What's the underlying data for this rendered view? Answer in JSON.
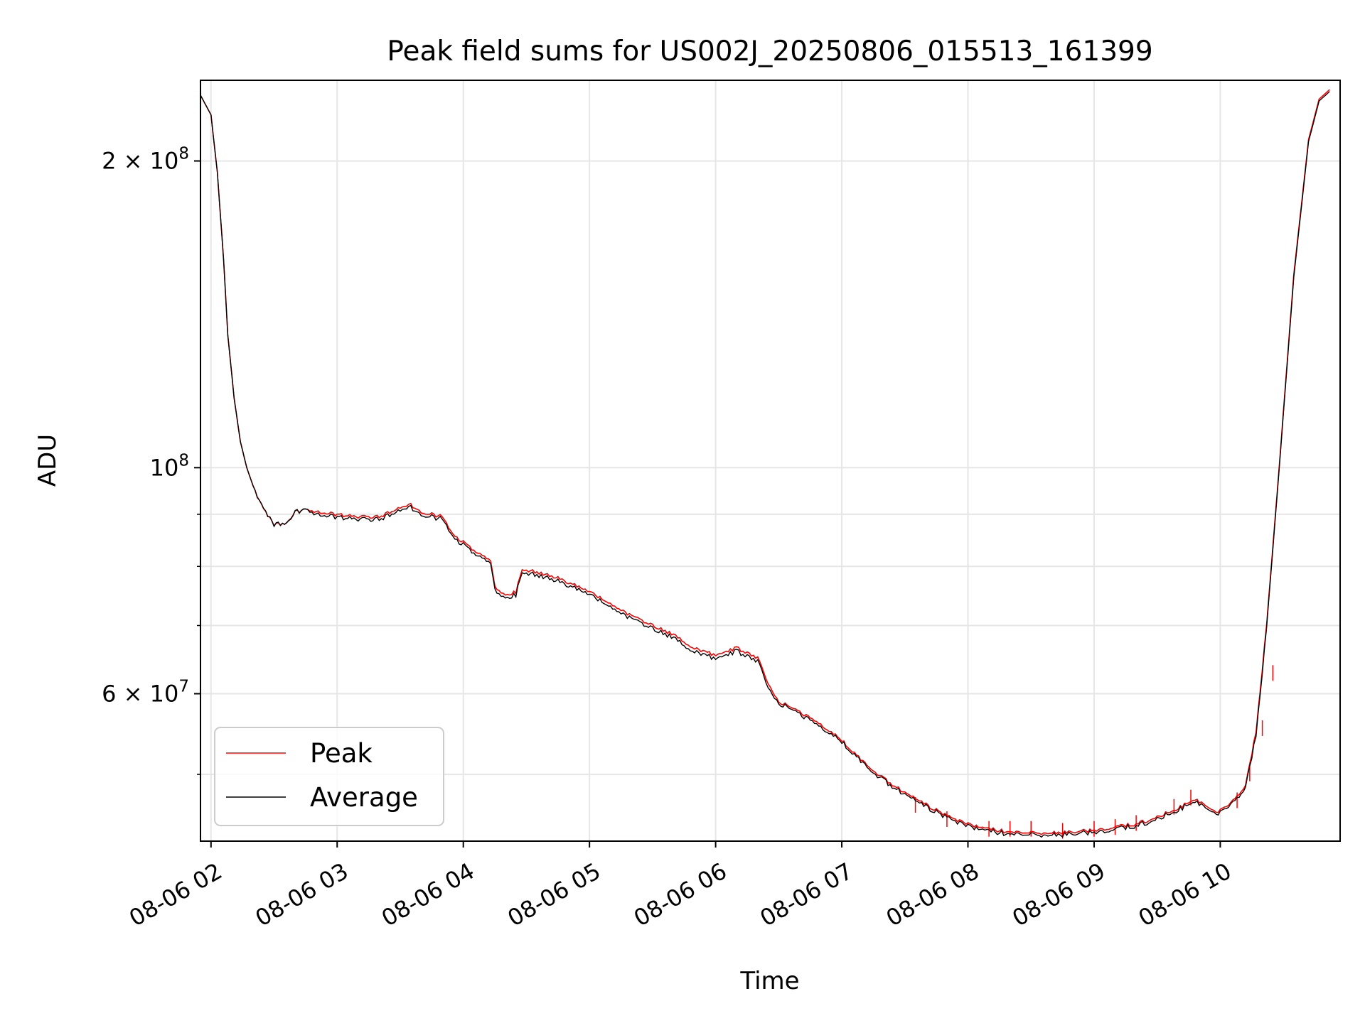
{
  "chart_data": {
    "type": "line",
    "title": "Peak field sums for US002J_20250806_015513_161399",
    "xlabel": "Time",
    "ylabel": "ADU",
    "y_scale": "log",
    "x_unit": "hours of 2025-08-06",
    "xlim": [
      "08-06 01:55",
      "08-06 10:57"
    ],
    "ylim": [
      43000000,
      240000000
    ],
    "x_ticks": [
      "08-06 02",
      "08-06 03",
      "08-06 04",
      "08-06 05",
      "08-06 06",
      "08-06 07",
      "08-06 08",
      "08-06 09",
      "08-06 10"
    ],
    "y_ticks_major": [
      {
        "value": 200000000,
        "mantissa": "2",
        "exponent": "8"
      },
      {
        "value": 100000000,
        "mantissa": "",
        "exponent": "8"
      },
      {
        "value": 60000000,
        "mantissa": "6",
        "exponent": "7"
      }
    ],
    "y_ticks_minor": [
      90000000,
      80000000,
      70000000,
      50000000
    ],
    "grid": true,
    "legend_position": "lower-left",
    "series": [
      {
        "name": "Peak",
        "color": "#ff0000",
        "points": [
          [
            "08-06 01:55",
            232000000
          ],
          [
            "08-06 02:00",
            222000000
          ],
          [
            "08-06 02:03",
            195000000
          ],
          [
            "08-06 02:06",
            160000000
          ],
          [
            "08-06 02:08",
            135000000
          ],
          [
            "08-06 02:11",
            117000000
          ],
          [
            "08-06 02:14",
            106000000
          ],
          [
            "08-06 02:17",
            100000000
          ],
          [
            "08-06 02:20",
            96000000
          ],
          [
            "08-06 02:25",
            91000000
          ],
          [
            "08-06 02:30",
            88000000
          ],
          [
            "08-06 02:35",
            88000000
          ],
          [
            "08-06 02:40",
            90500000
          ],
          [
            "08-06 02:45",
            91000000
          ],
          [
            "08-06 02:50",
            90500000
          ],
          [
            "08-06 03:00",
            90000000
          ],
          [
            "08-06 03:10",
            89500000
          ],
          [
            "08-06 03:20",
            89500000
          ],
          [
            "08-06 03:30",
            91500000
          ],
          [
            "08-06 03:35",
            92000000
          ],
          [
            "08-06 03:40",
            90500000
          ],
          [
            "08-06 03:50",
            89500000
          ],
          [
            "08-06 03:55",
            86000000
          ],
          [
            "08-06 04:05",
            83000000
          ],
          [
            "08-06 04:13",
            81000000
          ],
          [
            "08-06 04:15",
            76500000
          ],
          [
            "08-06 04:20",
            75000000
          ],
          [
            "08-06 04:25",
            75500000
          ],
          [
            "08-06 04:28",
            79500000
          ],
          [
            "08-06 04:35",
            79000000
          ],
          [
            "08-06 04:45",
            78000000
          ],
          [
            "08-06 05:00",
            75500000
          ],
          [
            "08-06 05:10",
            73500000
          ],
          [
            "08-06 05:20",
            71500000
          ],
          [
            "08-06 05:30",
            70000000
          ],
          [
            "08-06 05:40",
            68500000
          ],
          [
            "08-06 05:50",
            66500000
          ],
          [
            "08-06 06:00",
            65500000
          ],
          [
            "08-06 06:10",
            66500000
          ],
          [
            "08-06 06:20",
            65000000
          ],
          [
            "08-06 06:25",
            61500000
          ],
          [
            "08-06 06:30",
            59000000
          ],
          [
            "08-06 06:40",
            57500000
          ],
          [
            "08-06 06:50",
            56000000
          ],
          [
            "08-06 07:00",
            54000000
          ],
          [
            "08-06 07:10",
            51500000
          ],
          [
            "08-06 07:20",
            49500000
          ],
          [
            "08-06 07:30",
            48000000
          ],
          [
            "08-06 07:40",
            46700000
          ],
          [
            "08-06 07:50",
            45500000
          ],
          [
            "08-06 08:00",
            44700000
          ],
          [
            "08-06 08:10",
            44200000
          ],
          [
            "08-06 08:20",
            43900000
          ],
          [
            "08-06 08:30",
            43800000
          ],
          [
            "08-06 08:40",
            43800000
          ],
          [
            "08-06 08:50",
            43900000
          ],
          [
            "08-06 09:00",
            44100000
          ],
          [
            "08-06 09:10",
            44400000
          ],
          [
            "08-06 09:20",
            44700000
          ],
          [
            "08-06 09:30",
            45400000
          ],
          [
            "08-06 09:40",
            46300000
          ],
          [
            "08-06 09:48",
            47300000
          ],
          [
            "08-06 09:53",
            46700000
          ],
          [
            "08-06 09:58",
            45900000
          ],
          [
            "08-06 10:05",
            46800000
          ],
          [
            "08-06 10:12",
            48800000
          ],
          [
            "08-06 10:17",
            55000000
          ],
          [
            "08-06 10:22",
            70000000
          ],
          [
            "08-06 10:28",
            100000000
          ],
          [
            "08-06 10:35",
            155000000
          ],
          [
            "08-06 10:42",
            210000000
          ],
          [
            "08-06 10:47",
            230000000
          ],
          [
            "08-06 10:52",
            235000000
          ]
        ],
        "spikes": [
          [
            "08-06 07:35",
            47500000
          ],
          [
            "08-06 07:50",
            46000000
          ],
          [
            "08-06 08:10",
            45000000
          ],
          [
            "08-06 08:20",
            45000000
          ],
          [
            "08-06 08:30",
            45000000
          ],
          [
            "08-06 08:45",
            44800000
          ],
          [
            "08-06 09:00",
            45000000
          ],
          [
            "08-06 09:10",
            45200000
          ],
          [
            "08-06 09:20",
            45600000
          ],
          [
            "08-06 09:38",
            47300000
          ],
          [
            "08-06 09:46",
            48300000
          ],
          [
            "08-06 10:08",
            48000000
          ],
          [
            "08-06 10:14",
            51000000
          ],
          [
            "08-06 10:20",
            56500000
          ],
          [
            "08-06 10:25",
            64000000
          ]
        ]
      },
      {
        "name": "Average",
        "color": "#000000",
        "points": [
          [
            "08-06 01:55",
            232000000
          ],
          [
            "08-06 02:00",
            222000000
          ],
          [
            "08-06 02:03",
            195000000
          ],
          [
            "08-06 02:06",
            160000000
          ],
          [
            "08-06 02:08",
            135000000
          ],
          [
            "08-06 02:11",
            117000000
          ],
          [
            "08-06 02:14",
            106000000
          ],
          [
            "08-06 02:17",
            100000000
          ],
          [
            "08-06 02:20",
            96000000
          ],
          [
            "08-06 02:25",
            91000000
          ],
          [
            "08-06 02:30",
            88000000
          ],
          [
            "08-06 02:35",
            88000000
          ],
          [
            "08-06 02:40",
            90500000
          ],
          [
            "08-06 02:45",
            91000000
          ],
          [
            "08-06 02:50",
            90000000
          ],
          [
            "08-06 03:00",
            89500000
          ],
          [
            "08-06 03:10",
            89000000
          ],
          [
            "08-06 03:20",
            89000000
          ],
          [
            "08-06 03:30",
            91000000
          ],
          [
            "08-06 03:35",
            91500000
          ],
          [
            "08-06 03:40",
            90000000
          ],
          [
            "08-06 03:50",
            89000000
          ],
          [
            "08-06 03:55",
            85500000
          ],
          [
            "08-06 04:05",
            82500000
          ],
          [
            "08-06 04:13",
            80500000
          ],
          [
            "08-06 04:15",
            76000000
          ],
          [
            "08-06 04:20",
            74500000
          ],
          [
            "08-06 04:25",
            75000000
          ],
          [
            "08-06 04:28",
            79000000
          ],
          [
            "08-06 04:35",
            78500000
          ],
          [
            "08-06 04:45",
            77500000
          ],
          [
            "08-06 05:00",
            75000000
          ],
          [
            "08-06 05:10",
            73000000
          ],
          [
            "08-06 05:20",
            71000000
          ],
          [
            "08-06 05:30",
            69500000
          ],
          [
            "08-06 05:40",
            68000000
          ],
          [
            "08-06 05:50",
            66000000
          ],
          [
            "08-06 06:00",
            65000000
          ],
          [
            "08-06 06:10",
            66000000
          ],
          [
            "08-06 06:20",
            64500000
          ],
          [
            "08-06 06:25",
            61000000
          ],
          [
            "08-06 06:30",
            58800000
          ],
          [
            "08-06 06:40",
            57200000
          ],
          [
            "08-06 06:50",
            55700000
          ],
          [
            "08-06 07:00",
            53800000
          ],
          [
            "08-06 07:10",
            51300000
          ],
          [
            "08-06 07:20",
            49300000
          ],
          [
            "08-06 07:30",
            47800000
          ],
          [
            "08-06 07:40",
            46500000
          ],
          [
            "08-06 07:50",
            45300000
          ],
          [
            "08-06 08:00",
            44500000
          ],
          [
            "08-06 08:10",
            44000000
          ],
          [
            "08-06 08:20",
            43700000
          ],
          [
            "08-06 08:30",
            43600000
          ],
          [
            "08-06 08:40",
            43600000
          ],
          [
            "08-06 08:50",
            43700000
          ],
          [
            "08-06 09:00",
            43900000
          ],
          [
            "08-06 09:10",
            44200000
          ],
          [
            "08-06 09:20",
            44500000
          ],
          [
            "08-06 09:30",
            45200000
          ],
          [
            "08-06 09:40",
            46100000
          ],
          [
            "08-06 09:48",
            47100000
          ],
          [
            "08-06 09:53",
            46500000
          ],
          [
            "08-06 09:58",
            45700000
          ],
          [
            "08-06 10:05",
            46600000
          ],
          [
            "08-06 10:12",
            48600000
          ],
          [
            "08-06 10:17",
            54500000
          ],
          [
            "08-06 10:22",
            69500000
          ],
          [
            "08-06 10:28",
            99500000
          ],
          [
            "08-06 10:35",
            154000000
          ],
          [
            "08-06 10:42",
            209000000
          ],
          [
            "08-06 10:47",
            229000000
          ],
          [
            "08-06 10:52",
            234000000
          ]
        ]
      }
    ]
  },
  "legend": {
    "peak": "Peak",
    "average": "Average"
  }
}
